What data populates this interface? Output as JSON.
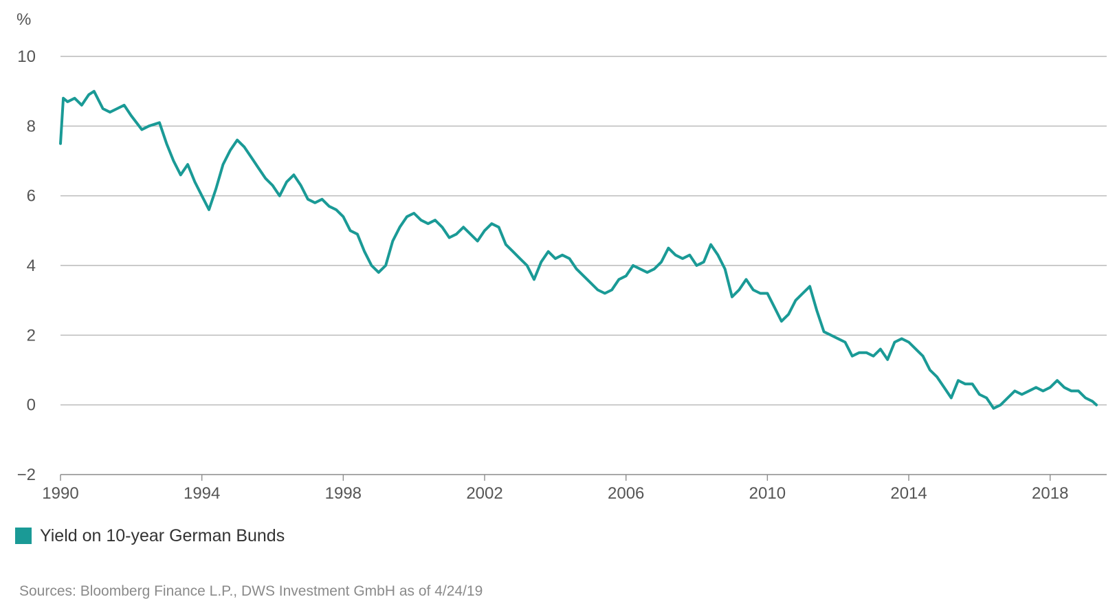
{
  "chart_data": {
    "type": "line",
    "ylabel": "%",
    "ylim": [
      -2,
      10
    ],
    "yticks": [
      -2,
      0,
      2,
      4,
      6,
      8,
      10
    ],
    "xlim": [
      1990,
      2019.6
    ],
    "xticks": [
      1990,
      1994,
      1998,
      2002,
      2006,
      2010,
      2014,
      2018
    ],
    "grid": "horizontal",
    "legend_position": "bottom-left",
    "series": [
      {
        "name": "Yield on 10-year German Bunds",
        "color": "#1a9a96",
        "x": [
          1990.0,
          1990.08,
          1990.2,
          1990.4,
          1990.6,
          1990.8,
          1990.95,
          1991.2,
          1991.4,
          1991.6,
          1991.8,
          1992.0,
          1992.3,
          1992.5,
          1992.8,
          1993.0,
          1993.2,
          1993.4,
          1993.6,
          1993.8,
          1994.0,
          1994.2,
          1994.4,
          1994.6,
          1994.8,
          1995.0,
          1995.2,
          1995.4,
          1995.6,
          1995.8,
          1996.0,
          1996.2,
          1996.4,
          1996.6,
          1996.8,
          1997.0,
          1997.2,
          1997.4,
          1997.6,
          1997.8,
          1998.0,
          1998.2,
          1998.4,
          1998.6,
          1998.8,
          1999.0,
          1999.2,
          1999.4,
          1999.6,
          1999.8,
          2000.0,
          2000.2,
          2000.4,
          2000.6,
          2000.8,
          2001.0,
          2001.2,
          2001.4,
          2001.6,
          2001.8,
          2002.0,
          2002.2,
          2002.4,
          2002.6,
          2002.8,
          2003.0,
          2003.2,
          2003.4,
          2003.6,
          2003.8,
          2004.0,
          2004.2,
          2004.4,
          2004.6,
          2004.8,
          2005.0,
          2005.2,
          2005.4,
          2005.6,
          2005.8,
          2006.0,
          2006.2,
          2006.4,
          2006.6,
          2006.8,
          2007.0,
          2007.2,
          2007.4,
          2007.6,
          2007.8,
          2008.0,
          2008.2,
          2008.4,
          2008.6,
          2008.8,
          2009.0,
          2009.2,
          2009.4,
          2009.6,
          2009.8,
          2010.0,
          2010.2,
          2010.4,
          2010.6,
          2010.8,
          2011.0,
          2011.2,
          2011.4,
          2011.6,
          2011.8,
          2012.0,
          2012.2,
          2012.4,
          2012.6,
          2012.8,
          2013.0,
          2013.2,
          2013.4,
          2013.6,
          2013.8,
          2014.0,
          2014.2,
          2014.4,
          2014.6,
          2014.8,
          2015.0,
          2015.2,
          2015.4,
          2015.6,
          2015.8,
          2016.0,
          2016.2,
          2016.4,
          2016.6,
          2016.8,
          2017.0,
          2017.2,
          2017.4,
          2017.6,
          2017.8,
          2018.0,
          2018.2,
          2018.4,
          2018.6,
          2018.8,
          2019.0,
          2019.2,
          2019.31
        ],
        "values": [
          7.5,
          8.8,
          8.7,
          8.8,
          8.6,
          8.9,
          9.0,
          8.5,
          8.4,
          8.5,
          8.6,
          8.3,
          7.9,
          8.0,
          8.1,
          7.5,
          7.0,
          6.6,
          6.9,
          6.4,
          6.0,
          5.6,
          6.2,
          6.9,
          7.3,
          7.6,
          7.4,
          7.1,
          6.8,
          6.5,
          6.3,
          6.0,
          6.4,
          6.6,
          6.3,
          5.9,
          5.8,
          5.9,
          5.7,
          5.6,
          5.4,
          5.0,
          4.9,
          4.4,
          4.0,
          3.8,
          4.0,
          4.7,
          5.1,
          5.4,
          5.5,
          5.3,
          5.2,
          5.3,
          5.1,
          4.8,
          4.9,
          5.1,
          4.9,
          4.7,
          5.0,
          5.2,
          5.1,
          4.6,
          4.4,
          4.2,
          4.0,
          3.6,
          4.1,
          4.4,
          4.2,
          4.3,
          4.2,
          3.9,
          3.7,
          3.5,
          3.3,
          3.2,
          3.3,
          3.6,
          3.7,
          4.0,
          3.9,
          3.8,
          3.9,
          4.1,
          4.5,
          4.3,
          4.2,
          4.3,
          4.0,
          4.1,
          4.6,
          4.3,
          3.9,
          3.1,
          3.3,
          3.6,
          3.3,
          3.2,
          3.2,
          2.8,
          2.4,
          2.6,
          3.0,
          3.2,
          3.4,
          2.7,
          2.1,
          2.0,
          1.9,
          1.8,
          1.4,
          1.5,
          1.5,
          1.4,
          1.6,
          1.3,
          1.8,
          1.9,
          1.8,
          1.6,
          1.4,
          1.0,
          0.8,
          0.5,
          0.2,
          0.7,
          0.6,
          0.6,
          0.3,
          0.2,
          -0.1,
          0.0,
          0.2,
          0.4,
          0.3,
          0.4,
          0.5,
          0.4,
          0.5,
          0.7,
          0.5,
          0.4,
          0.4,
          0.2,
          0.1,
          0.0
        ]
      }
    ]
  },
  "legend": {
    "label": "Yield on 10-year German Bunds",
    "color": "#1a9a96"
  },
  "footer": {
    "source": "Sources: Bloomberg Finance L.P., DWS Investment GmbH as of 4/24/19"
  }
}
